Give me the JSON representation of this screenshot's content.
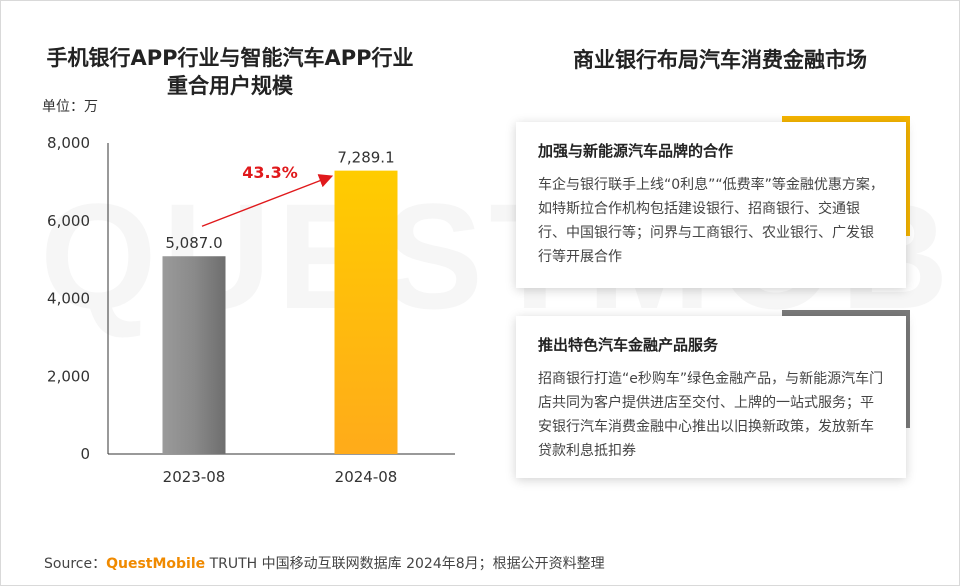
{
  "left_title_line1": "手机银行APP行业与智能汽车APP行业",
  "left_title_line2": "重合用户规模",
  "unit_label": "单位：万",
  "right_title": "商业银行布局汽车消费金融市场",
  "watermark_text": "QUESTMOBILE",
  "colors": {
    "bar_2023": "#8c8c8c",
    "bar_2024": "#ffbf00",
    "growth": "#e0191c",
    "accent_card1": "#f5b400",
    "accent_card2": "#7a7a7a",
    "brand": "#f08a00"
  },
  "chart_data": {
    "type": "bar",
    "categories": [
      "2023-08",
      "2024-08"
    ],
    "values": [
      5087.0,
      7289.1
    ],
    "value_labels": [
      "5,087.0",
      "7,289.1"
    ],
    "ylim": [
      0,
      8000
    ],
    "yticks": [
      0,
      2000,
      4000,
      6000,
      8000
    ],
    "ytick_labels": [
      "0",
      "2,000",
      "4,000",
      "6,000",
      "8,000"
    ],
    "growth_label": "43.3%",
    "grid": false
  },
  "cards": [
    {
      "title": "加强与新能源汽车品牌的合作",
      "body": "车企与银行联手上线“0利息”“低费率”等金融优惠方案，如特斯拉合作机构包括建设银行、招商银行、交通银行、中国银行等；问界与工商银行、农业银行、广发银行等开展合作"
    },
    {
      "title": "推出特色汽车金融产品服务",
      "body": "招商银行打造“e秒购车”绿色金融产品，与新能源汽车门店共同为客户提供进店至交付、上牌的一站式服务；平安银行汽车消费金融中心推出以旧换新政策，发放新车贷款利息抵扣券"
    }
  ],
  "source": {
    "prefix": "Source：",
    "brand": "QuestMobile",
    "rest": " TRUTH 中国移动互联网数据库 2024年8月；根据公开资料整理"
  }
}
